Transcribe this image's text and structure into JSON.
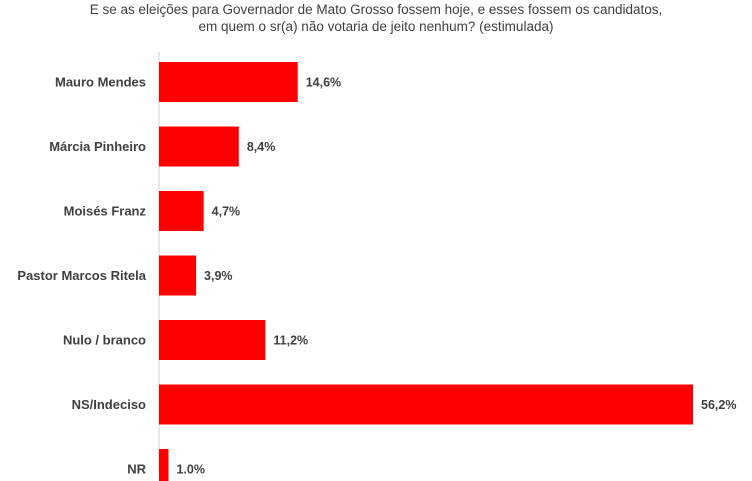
{
  "chart_data": {
    "type": "bar",
    "orientation": "horizontal",
    "title": "E se as eleições para Governador de Mato Grosso fossem hoje, e esses fossem os candidatos, em quem o sr(a) não votaria de jeito nenhum? (estimulada)",
    "title_lines": [
      "E se as eleições para Governador de Mato Grosso fossem hoje, e esses fossem os candidatos,",
      "em quem o sr(a) não votaria de jeito nenhum? (estimulada)"
    ],
    "categories": [
      "Mauro Mendes",
      "Márcia Pinheiro",
      "Moisés Franz",
      "Pastor Marcos Ritela",
      "Nulo / branco",
      "NS/Indeciso",
      "NR"
    ],
    "values": [
      14.6,
      8.4,
      4.7,
      3.9,
      11.2,
      56.2,
      1.0
    ],
    "value_labels": [
      "14,6%",
      "8,4%",
      "4,7%",
      "3,9%",
      "11,2%",
      "56,2%",
      "1.0%"
    ],
    "xlabel": "",
    "ylabel": "",
    "xlim": [
      0,
      56.2
    ],
    "grid": false,
    "bar_color": "#ff0000"
  }
}
